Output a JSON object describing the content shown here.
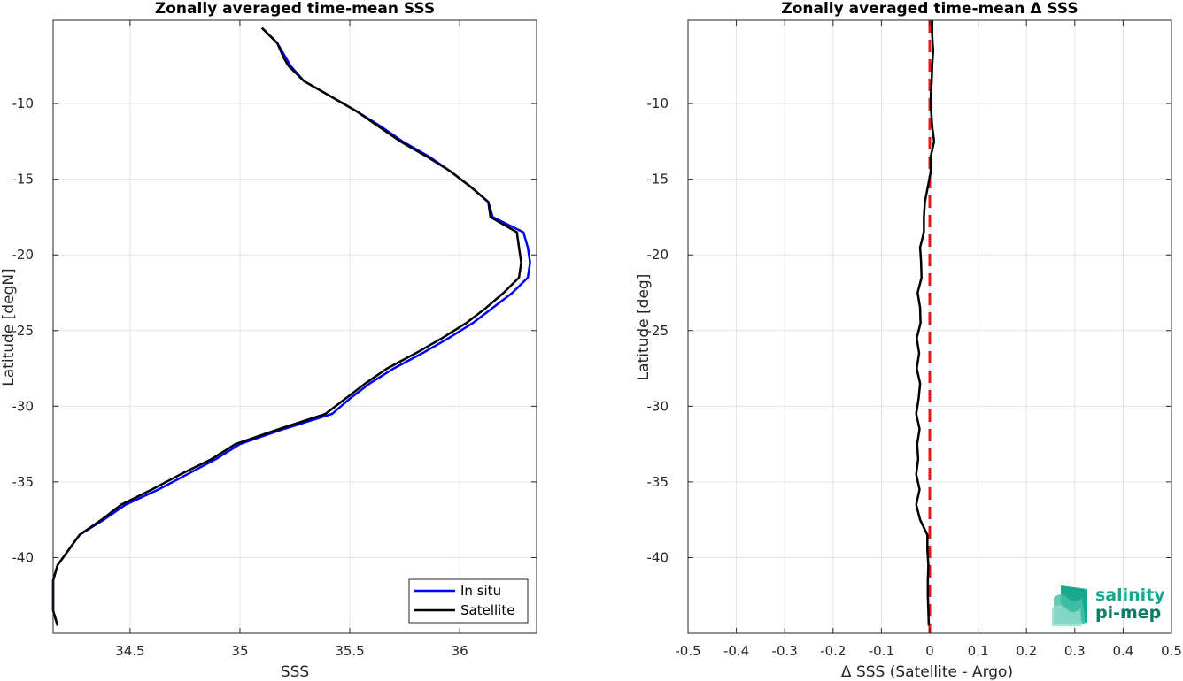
{
  "chart_data": [
    {
      "type": "line",
      "title": "Zonally averaged time-mean SSS",
      "xlabel": "SSS",
      "ylabel": "Latitude [degN]",
      "xlim": [
        34.15,
        36.35
      ],
      "ylim": [
        -45,
        -4.5
      ],
      "xticks": [
        34.5,
        35,
        35.5,
        36
      ],
      "xtick_labels": [
        "34.5",
        "35",
        "35.5",
        "36"
      ],
      "yticks": [
        -10,
        -15,
        -20,
        -25,
        -30,
        -35,
        -40
      ],
      "ytick_labels": [
        "-10",
        "-15",
        "-20",
        "-25",
        "-30",
        "-35",
        "-40"
      ],
      "grid": true,
      "legend_position": "bottom-right",
      "series": [
        {
          "name": "In situ",
          "color": "#0000ff",
          "lat": [
            -5.0,
            -6.0,
            -7.0,
            -7.5,
            -8.5,
            -9.5,
            -10.5,
            -11.5,
            -12.5,
            -13.5,
            -14.5,
            -15.5,
            -16.5,
            -17.5,
            -18.5,
            -19.5,
            -20.5,
            -21.5,
            -22.5,
            -23.5,
            -24.5,
            -25.5,
            -26.5,
            -27.5,
            -28.5,
            -29.5,
            -30.5,
            -31.5,
            -32.5,
            -33.5,
            -34.5,
            -35.5,
            -36.5,
            -37.5,
            -38.5,
            -39.5,
            -40.5,
            -41.5,
            -42.5,
            -43.5,
            -44.0,
            -44.5
          ],
          "sss": [
            35.1,
            35.17,
            35.21,
            35.23,
            35.29,
            35.41,
            35.53,
            35.64,
            35.74,
            35.86,
            35.96,
            36.05,
            36.13,
            36.15,
            36.29,
            36.31,
            36.32,
            36.31,
            36.24,
            36.15,
            36.06,
            35.95,
            35.83,
            35.7,
            35.59,
            35.5,
            35.42,
            35.2,
            35.0,
            34.89,
            34.76,
            34.63,
            34.48,
            34.38,
            34.27,
            34.22,
            34.17,
            34.15,
            34.15,
            34.15,
            34.16,
            34.17
          ]
        },
        {
          "name": "Satellite",
          "color": "#000000",
          "lat": [
            -5.0,
            -6.0,
            -7.0,
            -7.5,
            -8.5,
            -9.5,
            -10.5,
            -11.5,
            -12.5,
            -13.5,
            -14.5,
            -15.5,
            -16.5,
            -17.5,
            -18.5,
            -19.5,
            -20.5,
            -21.5,
            -22.5,
            -23.5,
            -24.5,
            -25.5,
            -26.5,
            -27.5,
            -28.5,
            -29.5,
            -30.5,
            -31.5,
            -32.5,
            -33.5,
            -34.5,
            -35.5,
            -36.5,
            -37.5,
            -38.5,
            -39.5,
            -40.5,
            -41.5,
            -42.5,
            -43.5,
            -44.0,
            -44.5
          ],
          "sss": [
            35.1,
            35.17,
            35.2,
            35.22,
            35.29,
            35.41,
            35.53,
            35.63,
            35.73,
            35.85,
            35.96,
            36.05,
            36.13,
            36.14,
            36.26,
            36.27,
            36.28,
            36.27,
            36.2,
            36.12,
            36.03,
            35.92,
            35.8,
            35.67,
            35.57,
            35.48,
            35.39,
            35.18,
            34.98,
            34.87,
            34.73,
            34.6,
            34.46,
            34.37,
            34.27,
            34.22,
            34.17,
            34.15,
            34.15,
            34.15,
            34.16,
            34.17
          ]
        }
      ]
    },
    {
      "type": "line",
      "title": "Zonally averaged time-mean Δ SSS",
      "xlabel": "Δ SSS (Satellite - Argo)",
      "ylabel": "Latitude [deg]",
      "xlim": [
        -0.5,
        0.5
      ],
      "ylim": [
        -45,
        -4.5
      ],
      "xticks": [
        -0.5,
        -0.4,
        -0.3,
        -0.2,
        -0.1,
        0,
        0.1,
        0.2,
        0.3,
        0.4,
        0.5
      ],
      "xtick_labels": [
        "-0.5",
        "-0.4",
        "-0.3",
        "-0.2",
        "-0.1",
        "0",
        "0.1",
        "0.2",
        "0.3",
        "0.4",
        "0.5"
      ],
      "yticks": [
        -10,
        -15,
        -20,
        -25,
        -30,
        -35,
        -40
      ],
      "ytick_labels": [
        "-10",
        "-15",
        "-20",
        "-25",
        "-30",
        "-35",
        "-40"
      ],
      "grid": true,
      "series": [
        {
          "color": "#000000",
          "lat": [
            -4.5,
            -5.5,
            -6.5,
            -7.5,
            -8.5,
            -9.5,
            -10.5,
            -11.5,
            -12.5,
            -13.5,
            -14.5,
            -15.5,
            -16.5,
            -17.5,
            -18.5,
            -19.5,
            -20.5,
            -21.5,
            -22.5,
            -23.5,
            -24.5,
            -25.5,
            -26.5,
            -27.5,
            -28.5,
            -29.5,
            -30.5,
            -31.5,
            -32.5,
            -33.5,
            -34.5,
            -35.5,
            -36.5,
            -37.5,
            -38.5,
            -39.5,
            -40.5,
            -41.5,
            -42.5,
            -43.5,
            -44.5
          ],
          "dsss": [
            0.005,
            0.005,
            0.007,
            0.005,
            0.004,
            0.002,
            0.003,
            0.005,
            0.009,
            0.002,
            0.002,
            -0.004,
            -0.01,
            -0.012,
            -0.012,
            -0.02,
            -0.018,
            -0.017,
            -0.025,
            -0.02,
            -0.019,
            -0.027,
            -0.022,
            -0.027,
            -0.02,
            -0.023,
            -0.028,
            -0.021,
            -0.026,
            -0.024,
            -0.028,
            -0.021,
            -0.028,
            -0.02,
            -0.005,
            -0.005,
            -0.003,
            -0.004,
            -0.004,
            -0.003,
            -0.002
          ]
        }
      ],
      "reference_line": {
        "x": 0,
        "color": "#e41a1c",
        "style": "dashed"
      }
    }
  ],
  "logo": {
    "line1": "salinity",
    "line2": "pi-mep"
  }
}
